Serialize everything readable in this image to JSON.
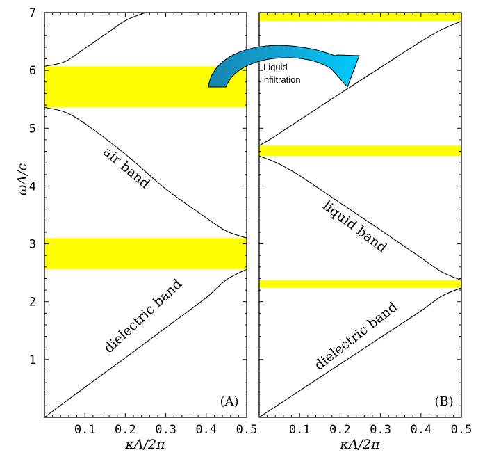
{
  "chart_data": [
    {
      "type": "line",
      "panel_label": "(A)",
      "xlim": [
        0,
        0.5
      ],
      "ylim": [
        0,
        7
      ],
      "xticks": [
        "0.1",
        "0.2",
        "0.3",
        "0.4",
        "0.5"
      ],
      "yticks": [
        "1",
        "2",
        "3",
        "4",
        "5",
        "6",
        "7"
      ],
      "xlabel": "κΛ/2π",
      "ylabel": "ωΛ/c",
      "band_gaps": [
        {
          "from": 2.56,
          "to": 3.1,
          "color": "#ffff00"
        },
        {
          "from": 5.36,
          "to": 6.07,
          "color": "#ffff00"
        }
      ],
      "series": [
        {
          "label": "dielectric band",
          "x": [
            0,
            0.1,
            0.2,
            0.3,
            0.4,
            0.45,
            0.5
          ],
          "y": [
            0,
            0.52,
            1.03,
            1.55,
            2.07,
            2.38,
            2.56
          ]
        },
        {
          "label": "air band",
          "x": [
            0,
            0.05,
            0.1,
            0.2,
            0.3,
            0.4,
            0.45,
            0.5
          ],
          "y": [
            5.36,
            5.28,
            5.08,
            4.55,
            3.95,
            3.45,
            3.22,
            3.1
          ]
        },
        {
          "x": [
            0,
            0.05,
            0.1,
            0.15,
            0.2,
            0.25
          ],
          "y": [
            6.07,
            6.15,
            6.38,
            6.62,
            6.86,
            7.0
          ]
        }
      ]
    },
    {
      "type": "line",
      "panel_label": "(B)",
      "xlim": [
        0,
        0.5
      ],
      "ylim": [
        0,
        7
      ],
      "xticks": [
        "0.1",
        "0.2",
        "0.3",
        "0.4",
        "0.5"
      ],
      "yticks": [],
      "xlabel": "κΛ/2π",
      "band_gaps": [
        {
          "from": 2.24,
          "to": 2.37,
          "color": "#ffff00"
        },
        {
          "from": 4.52,
          "to": 4.7,
          "color": "#ffff00"
        },
        {
          "from": 6.85,
          "to": 7.0,
          "color": "#ffff00"
        }
      ],
      "series": [
        {
          "label": "dielectric band",
          "x": [
            0,
            0.1,
            0.2,
            0.3,
            0.4,
            0.45,
            0.5
          ],
          "y": [
            0,
            0.46,
            0.92,
            1.38,
            1.84,
            2.09,
            2.24
          ]
        },
        {
          "label": "liquid band",
          "x": [
            0,
            0.05,
            0.1,
            0.2,
            0.3,
            0.4,
            0.45,
            0.5
          ],
          "y": [
            4.52,
            4.38,
            4.18,
            3.71,
            3.24,
            2.76,
            2.52,
            2.37
          ]
        },
        {
          "x": [
            0,
            0.03,
            0.08,
            0.2,
            0.3,
            0.4,
            0.45,
            0.5
          ],
          "y": [
            4.7,
            4.82,
            5.05,
            5.6,
            6.05,
            6.5,
            6.7,
            6.85
          ]
        }
      ]
    }
  ],
  "arrow": {
    "text_line1": "Liquid",
    "text_line2": "infiltration",
    "fill": "#1a9fcf",
    "light_fill": "#00c8ff"
  }
}
